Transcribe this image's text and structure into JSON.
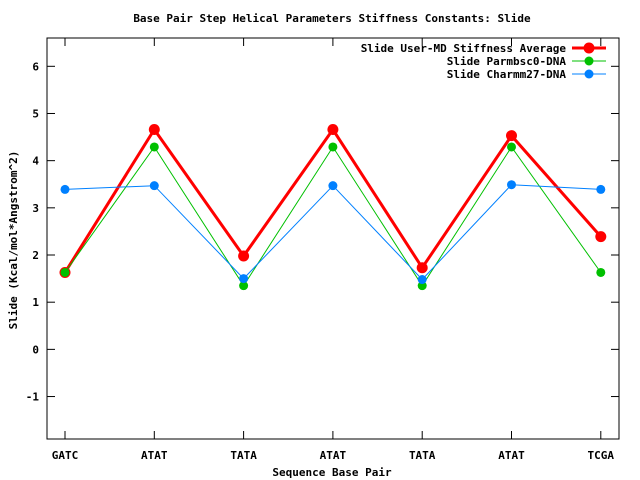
{
  "chart_data": {
    "type": "line",
    "title": "Base Pair Step Helical Parameters Stiffness Constants: Slide",
    "xlabel": "Sequence Base Pair",
    "ylabel": "Slide (Kcal/mol*Angstrom^2)",
    "categories": [
      "GATC",
      "ATAT",
      "TATA",
      "ATAT",
      "TATA",
      "ATAT",
      "TCGA"
    ],
    "ylim": [
      -1.9,
      6.6
    ],
    "yticks": [
      "-1",
      "0",
      "1",
      "2",
      "3",
      "4",
      "5",
      "6"
    ],
    "grid": false,
    "legend_position": "top-right",
    "series": [
      {
        "name": "Slide User-MD Stiffness Average",
        "color": "#ff0000",
        "values": [
          1.63,
          4.66,
          1.98,
          4.66,
          1.73,
          4.53,
          2.39
        ]
      },
      {
        "name": "Slide Parmbsc0-DNA",
        "color": "#00c000",
        "values": [
          1.63,
          4.29,
          1.35,
          4.29,
          1.35,
          4.29,
          1.63
        ]
      },
      {
        "name": "Slide Charmm27-DNA",
        "color": "#0080ff",
        "values": [
          3.39,
          3.47,
          1.5,
          3.47,
          1.48,
          3.49,
          3.39
        ]
      }
    ]
  }
}
